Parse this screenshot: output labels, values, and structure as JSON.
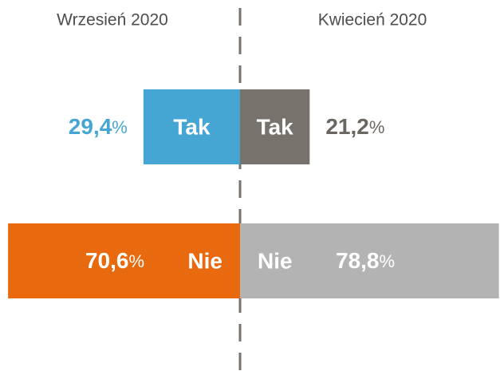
{
  "chart_data": {
    "type": "butterfly-bar",
    "categories": [
      "Tak",
      "Nie"
    ],
    "series": [
      {
        "name": "Wrzesień 2020",
        "side": "left",
        "colors": [
          "#45a6d3",
          "#e8690e"
        ],
        "label_colors": [
          "#45a6d3",
          "#ffffff"
        ],
        "values": [
          29.4,
          70.6
        ],
        "value_labels": [
          "29,4%",
          "70,6%"
        ]
      },
      {
        "name": "Kwiecień 2020",
        "side": "right",
        "colors": [
          "#77726c",
          "#b3b3b3"
        ],
        "label_colors": [
          "#6b6660",
          "#ffffff"
        ],
        "values": [
          21.2,
          78.8
        ],
        "value_labels": [
          "21,2%",
          "78,8%"
        ]
      }
    ]
  }
}
